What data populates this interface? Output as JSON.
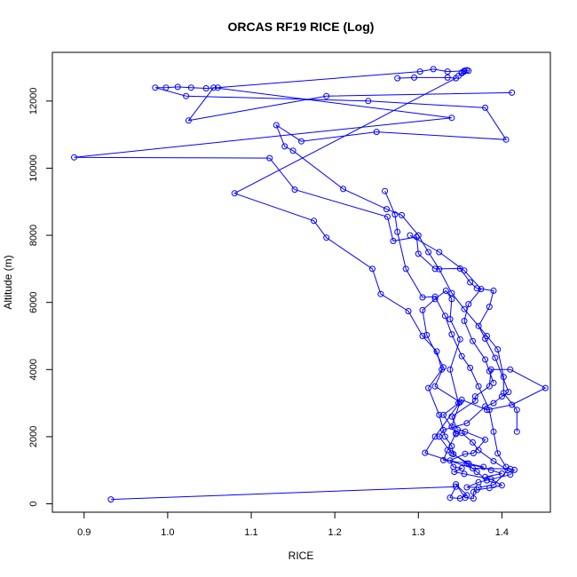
{
  "chart_data": {
    "type": "line",
    "title": "ORCAS RF19 RICE (Log)",
    "xlabel": "RICE",
    "ylabel": "Altitude (m)",
    "xlim": [
      0.862,
      1.458
    ],
    "ylim": [
      -250,
      13450
    ],
    "x_ticks": [
      0.9,
      1.0,
      1.1,
      1.2,
      1.3,
      1.4
    ],
    "x_tick_labels": [
      "0.9",
      "1.0",
      "1.1",
      "1.2",
      "1.3",
      "1.4"
    ],
    "y_ticks": [
      0,
      2000,
      4000,
      6000,
      8000,
      10000,
      12000
    ],
    "y_tick_labels": [
      "0",
      "2000",
      "4000",
      "6000",
      "8000",
      "10000",
      "12000"
    ],
    "grid": false,
    "colors": {
      "series": "#0000ff",
      "axis": "#000000"
    },
    "series": [
      {
        "marker": "open-circle",
        "points": [
          {
            "x": 0.932,
            "y": 130
          },
          {
            "x": 1.345,
            "y": 510
          },
          {
            "x": 1.338,
            "y": 180
          },
          {
            "x": 1.35,
            "y": 160
          },
          {
            "x": 1.358,
            "y": 260
          },
          {
            "x": 1.345,
            "y": 580
          },
          {
            "x": 1.356,
            "y": 180
          },
          {
            "x": 1.366,
            "y": 160
          },
          {
            "x": 1.366,
            "y": 350
          },
          {
            "x": 1.37,
            "y": 420
          },
          {
            "x": 1.385,
            "y": 470
          },
          {
            "x": 1.4,
            "y": 550
          },
          {
            "x": 1.387,
            "y": 730
          },
          {
            "x": 1.355,
            "y": 890
          },
          {
            "x": 1.343,
            "y": 950
          },
          {
            "x": 1.352,
            "y": 1060
          },
          {
            "x": 1.342,
            "y": 1100
          },
          {
            "x": 1.338,
            "y": 1290
          },
          {
            "x": 1.356,
            "y": 1490
          },
          {
            "x": 1.366,
            "y": 1510
          },
          {
            "x": 1.38,
            "y": 1910
          },
          {
            "x": 1.356,
            "y": 2150
          },
          {
            "x": 1.347,
            "y": 2210
          },
          {
            "x": 1.34,
            "y": 2600
          },
          {
            "x": 1.368,
            "y": 3070
          },
          {
            "x": 1.368,
            "y": 3200
          },
          {
            "x": 1.385,
            "y": 3500
          },
          {
            "x": 1.387,
            "y": 4000
          },
          {
            "x": 1.41,
            "y": 4000
          },
          {
            "x": 1.452,
            "y": 3450
          },
          {
            "x": 1.412,
            "y": 2950
          },
          {
            "x": 1.382,
            "y": 2800
          },
          {
            "x": 1.352,
            "y": 3100
          },
          {
            "x": 1.32,
            "y": 2000
          },
          {
            "x": 1.308,
            "y": 1520
          },
          {
            "x": 1.365,
            "y": 1060
          },
          {
            "x": 1.41,
            "y": 1040
          },
          {
            "x": 1.415,
            "y": 1010
          },
          {
            "x": 1.41,
            "y": 870
          },
          {
            "x": 1.372,
            "y": 640
          },
          {
            "x": 1.358,
            "y": 490
          },
          {
            "x": 1.372,
            "y": 490
          },
          {
            "x": 1.39,
            "y": 560
          },
          {
            "x": 1.407,
            "y": 1000
          },
          {
            "x": 1.39,
            "y": 1270
          },
          {
            "x": 1.372,
            "y": 1600
          },
          {
            "x": 1.365,
            "y": 1830
          },
          {
            "x": 1.352,
            "y": 2110
          },
          {
            "x": 1.345,
            "y": 2080
          },
          {
            "x": 1.34,
            "y": 2300
          },
          {
            "x": 1.35,
            "y": 3030
          },
          {
            "x": 1.32,
            "y": 3500
          },
          {
            "x": 1.33,
            "y": 4070
          },
          {
            "x": 1.31,
            "y": 5030
          },
          {
            "x": 1.305,
            "y": 5770
          },
          {
            "x": 1.32,
            "y": 6100
          },
          {
            "x": 1.333,
            "y": 6350
          },
          {
            "x": 1.34,
            "y": 6100
          },
          {
            "x": 1.338,
            "y": 5500
          },
          {
            "x": 1.35,
            "y": 4900
          },
          {
            "x": 1.338,
            "y": 4000
          },
          {
            "x": 1.348,
            "y": 3000
          },
          {
            "x": 1.33,
            "y": 2650
          },
          {
            "x": 1.345,
            "y": 2100
          },
          {
            "x": 1.335,
            "y": 1600
          },
          {
            "x": 1.33,
            "y": 1300
          },
          {
            "x": 1.36,
            "y": 1200
          },
          {
            "x": 1.387,
            "y": 1000
          },
          {
            "x": 1.4,
            "y": 900
          },
          {
            "x": 1.38,
            "y": 800
          }
        ]
      },
      {
        "marker": "open-circle",
        "points": [
          {
            "x": 1.36,
            "y": 12900
          },
          {
            "x": 1.358,
            "y": 12920
          },
          {
            "x": 1.355,
            "y": 12880
          },
          {
            "x": 1.352,
            "y": 12850
          },
          {
            "x": 1.348,
            "y": 12750
          },
          {
            "x": 1.352,
            "y": 12830
          },
          {
            "x": 1.355,
            "y": 12900
          },
          {
            "x": 1.335,
            "y": 12880
          },
          {
            "x": 1.318,
            "y": 12950
          },
          {
            "x": 1.302,
            "y": 12880
          },
          {
            "x": 1.06,
            "y": 12400
          },
          {
            "x": 1.046,
            "y": 12380
          },
          {
            "x": 1.028,
            "y": 12400
          },
          {
            "x": 1.012,
            "y": 12420
          },
          {
            "x": 0.998,
            "y": 12400
          },
          {
            "x": 0.985,
            "y": 12400
          },
          {
            "x": 1.022,
            "y": 12150
          },
          {
            "x": 1.24,
            "y": 12000
          },
          {
            "x": 1.38,
            "y": 11800
          },
          {
            "x": 1.405,
            "y": 10850
          },
          {
            "x": 1.25,
            "y": 11080
          },
          {
            "x": 1.16,
            "y": 10800
          },
          {
            "x": 1.13,
            "y": 11280
          },
          {
            "x": 1.14,
            "y": 10650
          },
          {
            "x": 1.15,
            "y": 10520
          },
          {
            "x": 1.21,
            "y": 9380
          },
          {
            "x": 1.262,
            "y": 8780
          },
          {
            "x": 1.28,
            "y": 8600
          },
          {
            "x": 1.3,
            "y": 8000
          },
          {
            "x": 1.312,
            "y": 7500
          },
          {
            "x": 1.325,
            "y": 6990
          },
          {
            "x": 1.34,
            "y": 6280
          },
          {
            "x": 1.355,
            "y": 5800
          },
          {
            "x": 1.382,
            "y": 5000
          },
          {
            "x": 1.395,
            "y": 4600
          },
          {
            "x": 1.402,
            "y": 3780
          },
          {
            "x": 1.402,
            "y": 3300
          },
          {
            "x": 1.418,
            "y": 2800
          },
          {
            "x": 1.418,
            "y": 2150
          }
        ]
      },
      {
        "marker": "open-circle",
        "points": [
          {
            "x": 1.412,
            "y": 12250
          },
          {
            "x": 1.19,
            "y": 12150
          },
          {
            "x": 1.025,
            "y": 11420
          },
          {
            "x": 1.055,
            "y": 12400
          },
          {
            "x": 1.34,
            "y": 11500
          },
          {
            "x": 0.888,
            "y": 10320
          },
          {
            "x": 1.122,
            "y": 10300
          },
          {
            "x": 1.152,
            "y": 9360
          },
          {
            "x": 1.263,
            "y": 8550
          },
          {
            "x": 1.27,
            "y": 7830
          },
          {
            "x": 1.298,
            "y": 7950
          },
          {
            "x": 1.3,
            "y": 7450
          },
          {
            "x": 1.32,
            "y": 7000
          },
          {
            "x": 1.35,
            "y": 7010
          },
          {
            "x": 1.362,
            "y": 6600
          },
          {
            "x": 1.37,
            "y": 6420
          },
          {
            "x": 1.39,
            "y": 6350
          },
          {
            "x": 1.385,
            "y": 5870
          },
          {
            "x": 1.372,
            "y": 5300
          },
          {
            "x": 1.38,
            "y": 4920
          },
          {
            "x": 1.392,
            "y": 4350
          },
          {
            "x": 1.408,
            "y": 3330
          },
          {
            "x": 1.4,
            "y": 3200
          },
          {
            "x": 1.39,
            "y": 3000
          },
          {
            "x": 1.38,
            "y": 2900
          },
          {
            "x": 1.358,
            "y": 2400
          },
          {
            "x": 1.33,
            "y": 2200
          },
          {
            "x": 1.325,
            "y": 2000
          },
          {
            "x": 1.34,
            "y": 1500
          },
          {
            "x": 1.36,
            "y": 1200
          },
          {
            "x": 1.378,
            "y": 1100
          }
        ]
      },
      {
        "marker": "open-circle",
        "points": [
          {
            "x": 1.275,
            "y": 12680
          },
          {
            "x": 1.295,
            "y": 12700
          },
          {
            "x": 1.335,
            "y": 12700
          },
          {
            "x": 1.345,
            "y": 12680
          },
          {
            "x": 1.08,
            "y": 9250
          },
          {
            "x": 1.175,
            "y": 8430
          },
          {
            "x": 1.19,
            "y": 7930
          },
          {
            "x": 1.245,
            "y": 7000
          },
          {
            "x": 1.255,
            "y": 6250
          },
          {
            "x": 1.288,
            "y": 5740
          },
          {
            "x": 1.305,
            "y": 5000
          },
          {
            "x": 1.322,
            "y": 4540
          },
          {
            "x": 1.328,
            "y": 4000
          },
          {
            "x": 1.312,
            "y": 3450
          },
          {
            "x": 1.325,
            "y": 2650
          },
          {
            "x": 1.332,
            "y": 2000
          },
          {
            "x": 1.34,
            "y": 1720
          },
          {
            "x": 1.342,
            "y": 1480
          },
          {
            "x": 1.358,
            "y": 1200
          },
          {
            "x": 1.37,
            "y": 950
          },
          {
            "x": 1.382,
            "y": 700
          }
        ]
      },
      {
        "marker": "open-circle",
        "points": [
          {
            "x": 1.26,
            "y": 9320
          },
          {
            "x": 1.272,
            "y": 8620
          },
          {
            "x": 1.275,
            "y": 8100
          },
          {
            "x": 1.285,
            "y": 7000
          },
          {
            "x": 1.305,
            "y": 6150
          },
          {
            "x": 1.32,
            "y": 6170
          },
          {
            "x": 1.332,
            "y": 5600
          },
          {
            "x": 1.34,
            "y": 5050
          },
          {
            "x": 1.352,
            "y": 4400
          },
          {
            "x": 1.362,
            "y": 4050
          },
          {
            "x": 1.372,
            "y": 3500
          },
          {
            "x": 1.385,
            "y": 2800
          },
          {
            "x": 1.39,
            "y": 2150
          },
          {
            "x": 1.395,
            "y": 1500
          },
          {
            "x": 1.405,
            "y": 1100
          }
        ]
      },
      {
        "marker": "open-circle",
        "points": [
          {
            "x": 1.29,
            "y": 8000
          },
          {
            "x": 1.325,
            "y": 7500
          },
          {
            "x": 1.355,
            "y": 6950
          },
          {
            "x": 1.375,
            "y": 6400
          },
          {
            "x": 1.36,
            "y": 5950
          },
          {
            "x": 1.355,
            "y": 5450
          },
          {
            "x": 1.365,
            "y": 4850
          },
          {
            "x": 1.38,
            "y": 4300
          },
          {
            "x": 1.385,
            "y": 3950
          },
          {
            "x": 1.39,
            "y": 3600
          }
        ]
      }
    ]
  }
}
